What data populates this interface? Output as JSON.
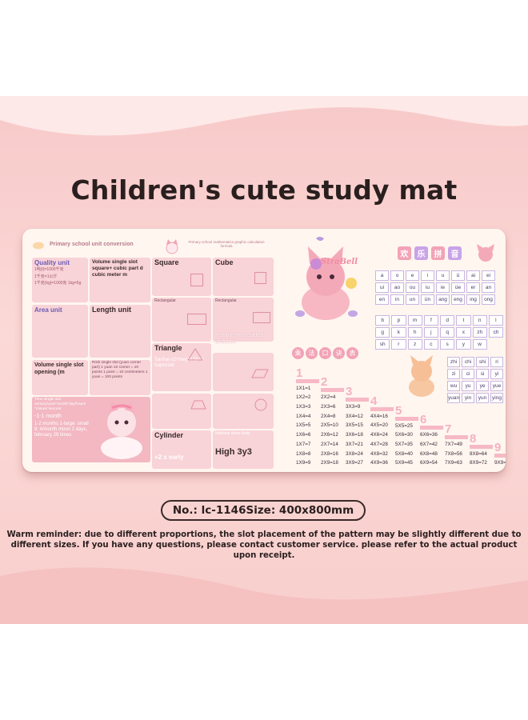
{
  "header": {
    "title": "Children's cute study mat"
  },
  "mat": {
    "left_panel": {
      "heading": "Primary school unit conversion",
      "sub_heading": "Primary school mathematics graphic calculation formula",
      "quality": {
        "title": "Quality unit",
        "line1": "1吨(t)=1000千克",
        "line2": "1千克=1公斤",
        "line3": "1千克(kg)=1000克 1kg=5g"
      },
      "volume": {
        "title": "Volume single slot square+ cubic part d cubic meter m"
      },
      "area": {
        "title": "Area unit"
      },
      "length": {
        "title": "Length unit"
      },
      "volume_opening": {
        "title": "Volume single slot opening (m"
      },
      "rmb": {
        "title": "Rmb single slot (yuan corner part) 1 yuan 10 corner = 10 points 1 point = 10 centimeters 1 yuan = 100 points"
      },
      "time": {
        "title": "Time single slot century/year\"month\"day/hours \"minute\"second",
        "line1": "-1-1 month",
        "line2": "1-2 months 1-large: small 9: 4/month moon 2 days, february 29 times"
      },
      "square": "Square",
      "cube": "Cube",
      "rectangular1": "Rectangular",
      "rectangular2": "Rectangular",
      "parallel": "Parallel four-sided shadow",
      "triangle": "Triangle",
      "sanhai": "Sanhai-x2+height 2h÷h trapezoid",
      "cylinder": "Cylinder",
      "national": "National silver body",
      "early": "+2 x early",
      "high": "High 3y3"
    },
    "right_panel": {
      "logo": "StraBell",
      "pinyin_title": [
        "欢",
        "乐",
        "拼",
        "音"
      ],
      "vowels": [
        "a",
        "o",
        "e",
        "i",
        "u",
        "ü",
        "ai",
        "ei",
        "ui",
        "ao",
        "ou",
        "iu",
        "ie",
        "üe",
        "er",
        "an",
        "en",
        "in",
        "un",
        "ün",
        "ang",
        "eng",
        "ing",
        "ong"
      ],
      "consonants": [
        "b",
        "p",
        "m",
        "f",
        "d",
        "t",
        "n",
        "l",
        "g",
        "k",
        "h",
        "j",
        "q",
        "x",
        "zh",
        "ch",
        "sh",
        "r",
        "z",
        "c",
        "s",
        "y",
        "w"
      ],
      "whole_syllables": [
        "zhi",
        "chi",
        "shi",
        "ri",
        "zi",
        "ci",
        "si",
        "yi",
        "wu",
        "yu",
        "ye",
        "yue",
        "yuan",
        "yin",
        "yun",
        "ying"
      ],
      "mul_title": [
        "乘",
        "法",
        "口",
        "诀",
        "表"
      ],
      "mul_numbers": [
        "1",
        "2",
        "3",
        "4",
        "5",
        "6",
        "7",
        "8",
        "9"
      ]
    }
  },
  "spec": {
    "no": "No.: lc-1146",
    "size": "Size: 400x800mm"
  },
  "reminder": "Warm reminder: due to different proportions, the slot placement of the pattern may be slightly different due to different sizes. If you have any questions, please contact customer service. please refer to the actual product upon receipt.",
  "colors": {
    "band": "#f8cfcd",
    "mat": "#fff6ef",
    "accent_pink": "#f2a3b6",
    "accent_purple": "#b89ae0"
  }
}
